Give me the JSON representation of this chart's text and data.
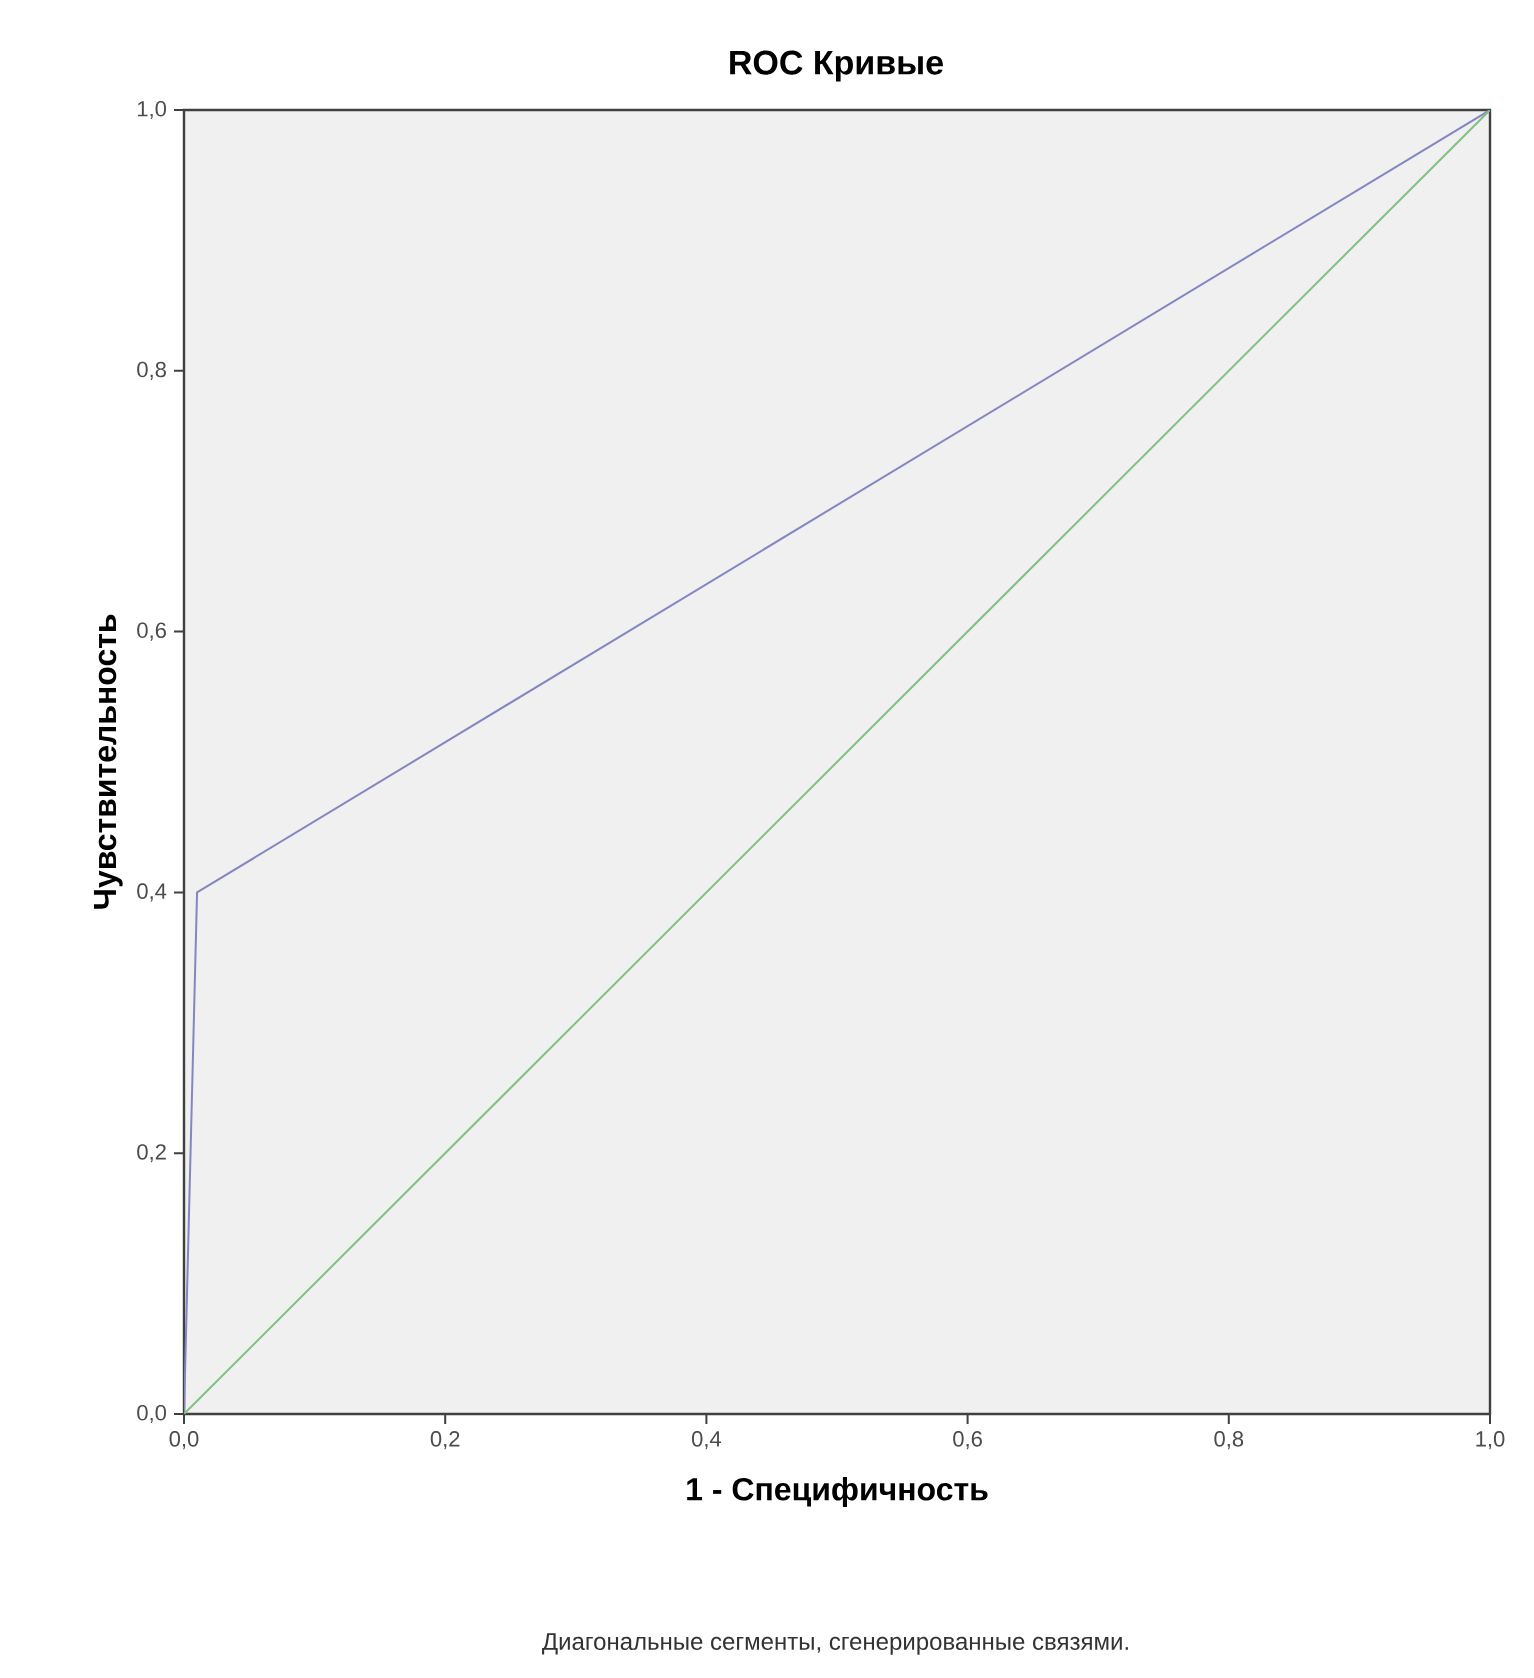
{
  "chart_data": {
    "type": "line",
    "title": "ROC Кривые",
    "xlabel": "1 - Специфичность",
    "ylabel": "Чувствительность",
    "annotations": [
      "Диагональные сегменты, сгенерированные связями."
    ],
    "series": [
      {
        "color": "#8486c2",
        "x": [
          0,
          0.01,
          1
        ],
        "values": [
          0,
          0.4,
          1
        ]
      },
      {
        "color": "#80c080",
        "x": [
          0,
          1
        ],
        "values": [
          0,
          1
        ]
      }
    ],
    "xlim": [
      0,
      1
    ],
    "ylim": [
      0,
      1
    ],
    "xticks": [
      {
        "value": 0,
        "label": "0,0"
      },
      {
        "value": 0.2,
        "label": "0,2"
      },
      {
        "value": 0.4,
        "label": "0,4"
      },
      {
        "value": 0.6,
        "label": "0,6"
      },
      {
        "value": 0.8,
        "label": "0,8"
      },
      {
        "value": 1,
        "label": "1,0"
      }
    ],
    "yticks": [
      {
        "value": 0,
        "label": "0,0"
      },
      {
        "value": 0.2,
        "label": "0,2"
      },
      {
        "value": 0.4,
        "label": "0,4"
      },
      {
        "value": 0.6,
        "label": "0,6"
      },
      {
        "value": 0.8,
        "label": "0,8"
      },
      {
        "value": 1,
        "label": "1,0"
      }
    ],
    "marker": "none",
    "line_style": "solid"
  }
}
